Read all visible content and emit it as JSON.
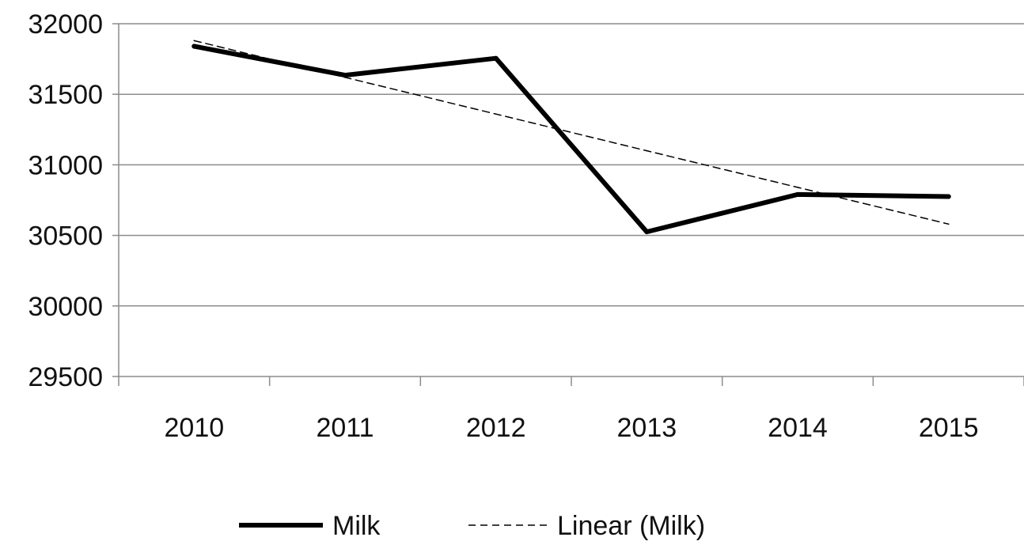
{
  "chart_data": {
    "type": "line",
    "categories": [
      "2010",
      "2011",
      "2012",
      "2013",
      "2014",
      "2015"
    ],
    "series": [
      {
        "name": "Milk",
        "values": [
          31840,
          31635,
          31755,
          30525,
          30790,
          30775
        ],
        "color": "#000000",
        "style": "solid"
      },
      {
        "name": "Linear (Milk)",
        "values": [
          31880,
          31620,
          31360,
          31100,
          30840,
          30580
        ],
        "color": "#000000",
        "style": "dashed"
      }
    ],
    "yticks": [
      "29500",
      "30000",
      "30500",
      "31000",
      "31500",
      "32000"
    ],
    "ylim": [
      29500,
      32000
    ],
    "grid": true,
    "legend_position": "bottom"
  }
}
